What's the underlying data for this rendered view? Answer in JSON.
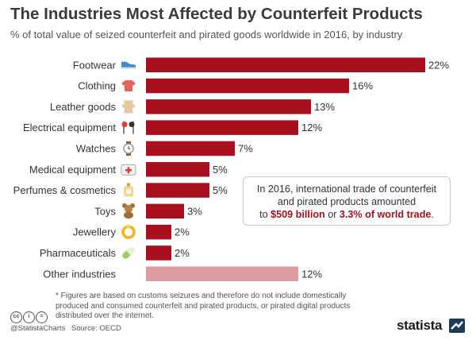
{
  "title": "The Industries Most Affected by Counterfeit Products",
  "subtitle": "% of total value of seized counterfeit and pirated goods worldwide in 2016, by industry",
  "callout": {
    "line1": "In 2016, international trade of counterfeit",
    "line2": "and pirated products amounted",
    "line3_pre": "to ",
    "amount": "$509 billion",
    "line3_mid": " or ",
    "share": "3.3% of world trade",
    "line3_post": "."
  },
  "footnote": {
    "text": "* Figures are based on customs seizures and therefore do not include domestically produced and consumed counterfeit and pirated products, or pirated digital products distributed over the internet."
  },
  "footer": {
    "cc_marks": [
      "cc",
      "i",
      "="
    ],
    "handle": "@StatistaCharts",
    "source": "Source: OECD",
    "brand": "statista"
  },
  "colors": {
    "bar": "#a8101d",
    "bar_other": "#dd9ca1",
    "highlight": "#a8101d"
  },
  "chart_data": {
    "type": "bar",
    "orientation": "horizontal",
    "unit": "%",
    "categories": [
      "Footwear",
      "Clothing",
      "Leather goods",
      "Electrical equipment",
      "Watches",
      "Medical equipment",
      "Perfumes & cosmetics",
      "Toys",
      "Jewellery",
      "Pharmaceuticals",
      "Other industries"
    ],
    "values": [
      22,
      16,
      13,
      12,
      7,
      5,
      5,
      3,
      2,
      2,
      12
    ],
    "value_labels": [
      "22%",
      "16%",
      "13%",
      "12%",
      "7%",
      "5%",
      "5%",
      "3%",
      "2%",
      "2%",
      "12%"
    ],
    "icons": [
      "sneaker-icon",
      "shirt-icon",
      "leather-hide-icon",
      "earphones-icon",
      "watch-icon",
      "first-aid-kit-icon",
      "perfume-bottle-icon",
      "teddy-bear-icon",
      "ring-icon",
      "pill-capsule-icon",
      null
    ],
    "highlighted_last": true
  }
}
